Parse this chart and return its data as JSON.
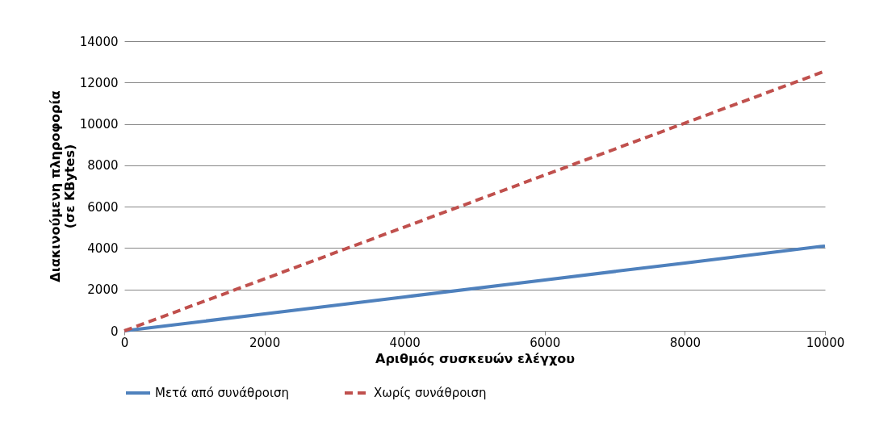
{
  "chart_data": {
    "type": "line",
    "xlabel": "Αριθμός συσκευών ελέγχου",
    "ylabel": "Διακινούμενη πληροφορία\n(σε KBytes)",
    "x": [
      0,
      2000,
      4000,
      6000,
      8000,
      10000
    ],
    "series": [
      {
        "name": "Μετά από συνάθροιση",
        "color": "#4f81bd",
        "line_style": "solid",
        "values": [
          0,
          820,
          1640,
          2460,
          3280,
          4100
        ]
      },
      {
        "name": "Χωρίς συνάθροιση",
        "color": "#c0504d",
        "line_style": "dashed",
        "values": [
          0,
          2510,
          5020,
          7530,
          10040,
          12550
        ]
      }
    ],
    "xlim": [
      0,
      10000
    ],
    "xticks": [
      0,
      2000,
      4000,
      6000,
      8000,
      10000
    ],
    "ylim": [
      0,
      14000
    ],
    "yticks": [
      0,
      2000,
      4000,
      6000,
      8000,
      10000,
      12000,
      14000
    ],
    "grid": "y",
    "legend": "bottom",
    "marker": "none"
  }
}
